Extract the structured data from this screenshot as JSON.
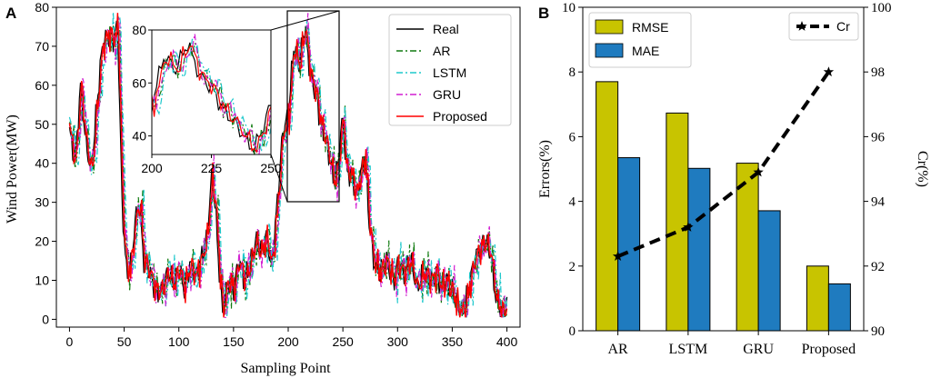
{
  "chart_data": [
    {
      "panel_label": "A",
      "type": "line",
      "xlabel": "Sampling Point",
      "ylabel": "Wind Power(MW)",
      "xlim": [
        -12,
        412
      ],
      "ylim": [
        -2,
        80
      ],
      "xticks": [
        0,
        50,
        100,
        150,
        200,
        250,
        300,
        350,
        400
      ],
      "yticks": [
        0,
        10,
        20,
        30,
        40,
        50,
        60,
        70,
        80
      ],
      "legend": {
        "position": "top-right",
        "entries": [
          {
            "name": "Real",
            "color": "#000000",
            "dash": "solid"
          },
          {
            "name": "AR",
            "color": "#107a10",
            "dash": "dashdot"
          },
          {
            "name": "LSTM",
            "color": "#1fc8cc",
            "dash": "dashdot"
          },
          {
            "name": "GRU",
            "color": "#d21fd2",
            "dash": "dashdot"
          },
          {
            "name": "Proposed",
            "color": "#ff0000",
            "dash": "solid"
          }
        ]
      },
      "real_keypoints": [
        [
          0,
          48
        ],
        [
          5,
          40
        ],
        [
          10,
          60
        ],
        [
          15,
          45
        ],
        [
          20,
          38
        ],
        [
          25,
          55
        ],
        [
          30,
          70
        ],
        [
          35,
          73
        ],
        [
          40,
          72
        ],
        [
          44,
          75
        ],
        [
          48,
          30
        ],
        [
          52,
          12
        ],
        [
          56,
          14
        ],
        [
          60,
          25
        ],
        [
          64,
          30
        ],
        [
          68,
          15
        ],
        [
          72,
          13
        ],
        [
          78,
          8
        ],
        [
          84,
          7
        ],
        [
          90,
          12
        ],
        [
          95,
          9
        ],
        [
          100,
          13
        ],
        [
          105,
          8
        ],
        [
          110,
          14
        ],
        [
          115,
          11
        ],
        [
          120,
          15
        ],
        [
          125,
          20
        ],
        [
          130,
          36
        ],
        [
          133,
          30
        ],
        [
          137,
          12
        ],
        [
          140,
          2
        ],
        [
          145,
          10
        ],
        [
          150,
          8
        ],
        [
          155,
          15
        ],
        [
          160,
          10
        ],
        [
          165,
          14
        ],
        [
          170,
          20
        ],
        [
          175,
          17
        ],
        [
          180,
          21
        ],
        [
          185,
          14
        ],
        [
          190,
          30
        ],
        [
          195,
          48
        ],
        [
          200,
          52
        ],
        [
          205,
          70
        ],
        [
          210,
          65
        ],
        [
          215,
          75
        ],
        [
          220,
          63
        ],
        [
          225,
          58
        ],
        [
          230,
          50
        ],
        [
          235,
          45
        ],
        [
          240,
          38
        ],
        [
          243,
          35
        ],
        [
          247,
          44
        ],
        [
          250,
          52
        ],
        [
          253,
          38
        ],
        [
          258,
          37
        ],
        [
          262,
          32
        ],
        [
          266,
          37
        ],
        [
          270,
          42
        ],
        [
          274,
          25
        ],
        [
          278,
          15
        ],
        [
          284,
          12
        ],
        [
          290,
          15
        ],
        [
          296,
          10
        ],
        [
          300,
          14
        ],
        [
          306,
          12
        ],
        [
          312,
          15
        ],
        [
          318,
          8
        ],
        [
          324,
          12
        ],
        [
          330,
          10
        ],
        [
          336,
          12
        ],
        [
          340,
          8
        ],
        [
          345,
          10
        ],
        [
          350,
          7
        ],
        [
          355,
          3
        ],
        [
          360,
          2
        ],
        [
          365,
          8
        ],
        [
          370,
          15
        ],
        [
          375,
          18
        ],
        [
          380,
          20
        ],
        [
          385,
          17
        ],
        [
          390,
          5
        ],
        [
          395,
          2
        ],
        [
          400,
          3
        ]
      ],
      "inset": {
        "type": "line",
        "xlim": [
          200,
          250
        ],
        "ylim": [
          33,
          80
        ],
        "xticks": [
          200,
          225,
          250
        ],
        "yticks": [
          40,
          60,
          80
        ]
      }
    },
    {
      "panel_label": "B",
      "type": "bar",
      "categories": [
        "AR",
        "LSTM",
        "GRU",
        "Proposed"
      ],
      "series": [
        {
          "name": "RMSE",
          "axis": "left",
          "color": "#c8c400",
          "values": [
            7.7,
            6.73,
            5.18,
            2.0
          ]
        },
        {
          "name": "MAE",
          "axis": "left",
          "color": "#1f7bbf",
          "values": [
            5.35,
            5.02,
            3.71,
            1.45
          ]
        },
        {
          "name": "Cr",
          "axis": "right",
          "type": "line",
          "color": "#000000",
          "values": [
            92.3,
            93.2,
            94.9,
            98.0
          ]
        }
      ],
      "ylabel": "Errors(%)",
      "ylim": [
        0,
        10
      ],
      "yticks": [
        0,
        2,
        4,
        6,
        8,
        10
      ],
      "y2label": "Cr(%)",
      "y2lim": [
        90,
        100
      ],
      "y2ticks": [
        90,
        92,
        94,
        96,
        98,
        100
      ],
      "legend": {
        "bars_position": "top-left",
        "line_position": "top-right"
      }
    }
  ]
}
